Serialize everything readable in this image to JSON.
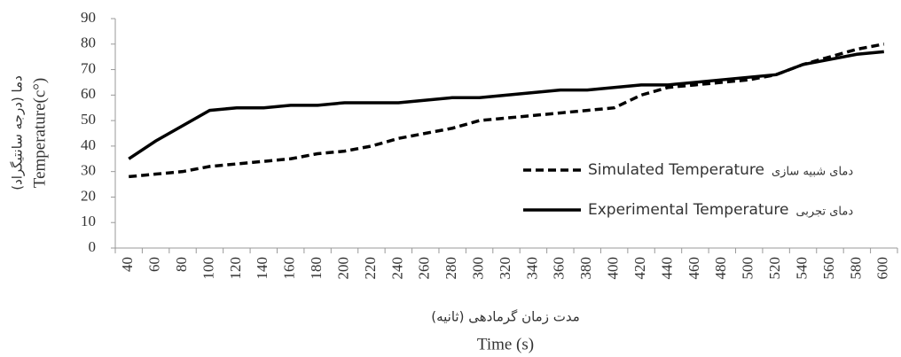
{
  "chart_data": {
    "type": "line",
    "ylabel": "Temperature(c°)",
    "ylabel_fa": "دما (درجه سانتیگراد)",
    "xlabel": "Time (s)",
    "xlabel_fa": "مدت زمان گرمادهی (ثانیه)",
    "categories": [
      "40",
      "60",
      "80",
      "100",
      "120",
      "140",
      "160",
      "180",
      "200",
      "220",
      "240",
      "260",
      "280",
      "300",
      "320",
      "340",
      "360",
      "380",
      "400",
      "420",
      "440",
      "460",
      "480",
      "500",
      "520",
      "540",
      "560",
      "580",
      "600"
    ],
    "series": [
      {
        "name": "Simulated Temperature",
        "name_fa": "دمای شبیه سازی",
        "color": "#000000",
        "dashed": true,
        "values": [
          28,
          29,
          30,
          32,
          33,
          34,
          35,
          37,
          38,
          40,
          43,
          45,
          47,
          50,
          51,
          52,
          53,
          54,
          55,
          60,
          63,
          64,
          65,
          66,
          68,
          72,
          75,
          78,
          80
        ]
      },
      {
        "name": "Experimental Temperature",
        "name_fa": "دمای تجربی",
        "color": "#000000",
        "dashed": false,
        "values": [
          35,
          42,
          48,
          54,
          55,
          55,
          56,
          56,
          57,
          57,
          57,
          58,
          59,
          59,
          60,
          61,
          62,
          62,
          63,
          64,
          64,
          65,
          66,
          67,
          68,
          72,
          74,
          76,
          77
        ]
      }
    ],
    "ylim": [
      0,
      90
    ],
    "yticks": [
      0,
      10,
      20,
      30,
      40,
      50,
      60,
      70,
      80,
      90
    ],
    "grid": false,
    "legend": "right"
  }
}
